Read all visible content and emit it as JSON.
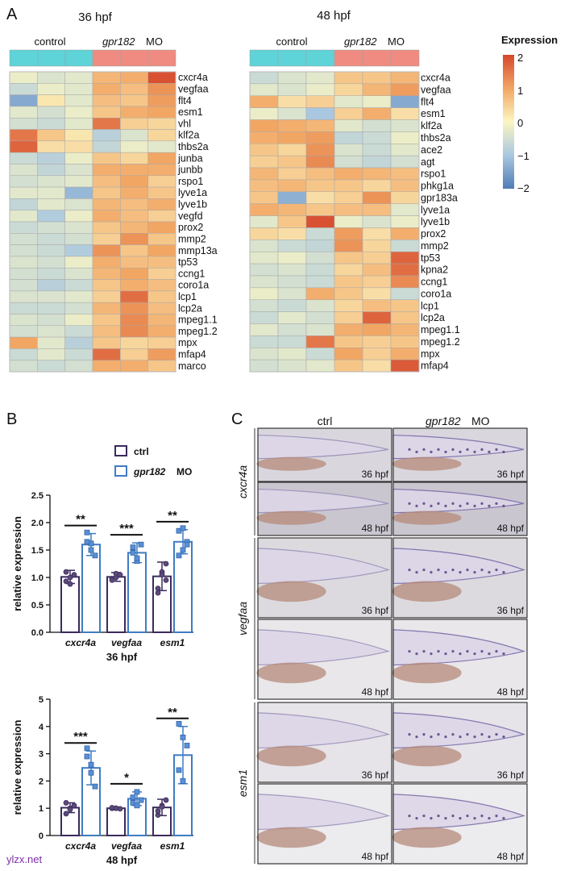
{
  "panel_a": {
    "letter": "A",
    "colorbar": {
      "title": "Expression",
      "ticks": [
        "2",
        "1",
        "0",
        "−1",
        "−2"
      ]
    },
    "heatmaps": [
      {
        "title": "36 hpf",
        "group_labels": [
          "control",
          "gpr182",
          "MO"
        ],
        "genes": [
          "cxcr4a",
          "vegfaa",
          "flt4",
          "esm1",
          "vhl",
          "klf2a",
          "thbs2a",
          "junba",
          "junbb",
          "rspo1",
          "lyve1a",
          "lyve1b",
          "vegfd",
          "prox2",
          "mmp2",
          "mmp13a",
          "tp53",
          "ccng1",
          "coro1a",
          "lcp1",
          "lcp2a",
          "mpeg1.1",
          "mpeg1.2",
          "mpx",
          "mfap4",
          "marco"
        ],
        "values": [
          [
            -0.2,
            -0.4,
            -0.3,
            0.8,
            0.9,
            1.9
          ],
          [
            -0.6,
            -0.2,
            -0.3,
            0.9,
            0.7,
            1.2
          ],
          [
            -1.4,
            0.2,
            -0.3,
            0.7,
            0.6,
            1.1
          ],
          [
            -0.3,
            -0.5,
            -0.2,
            0.6,
            0.9,
            1.0
          ],
          [
            -0.5,
            -0.6,
            -0.3,
            1.5,
            0.5,
            0.4
          ],
          [
            1.5,
            0.6,
            0.2,
            -0.8,
            -0.4,
            0.4
          ],
          [
            1.7,
            0.3,
            0.3,
            -0.7,
            -0.2,
            -0.3
          ],
          [
            -0.6,
            -0.8,
            -0.2,
            0.6,
            0.4,
            1.0
          ],
          [
            -0.4,
            -0.7,
            -0.4,
            0.9,
            0.9,
            0.9
          ],
          [
            -0.5,
            -0.4,
            -0.3,
            0.7,
            1.0,
            0.5
          ],
          [
            -0.3,
            -0.3,
            -1.2,
            0.6,
            0.9,
            0.6
          ],
          [
            -0.7,
            -0.3,
            -0.4,
            0.8,
            0.7,
            0.9
          ],
          [
            -0.3,
            -0.9,
            -0.2,
            0.9,
            0.7,
            0.5
          ],
          [
            -0.6,
            -0.5,
            -0.4,
            0.6,
            0.8,
            1.0
          ],
          [
            -0.5,
            -0.6,
            -0.5,
            0.5,
            1.2,
            0.6
          ],
          [
            -0.5,
            -0.6,
            -0.9,
            1.2,
            0.6,
            1.0
          ],
          [
            -0.4,
            -0.5,
            -0.2,
            0.9,
            0.7,
            0.7
          ],
          [
            -0.5,
            -0.6,
            -0.4,
            0.8,
            1.0,
            0.5
          ],
          [
            -0.5,
            -0.8,
            -0.6,
            0.6,
            0.9,
            0.7
          ],
          [
            -0.4,
            -0.4,
            -0.3,
            0.5,
            1.6,
            0.6
          ],
          [
            -0.6,
            -0.6,
            -0.5,
            0.8,
            1.2,
            0.7
          ],
          [
            -0.4,
            -0.5,
            -0.2,
            0.6,
            1.3,
            0.8
          ],
          [
            -0.5,
            -0.4,
            -0.6,
            0.7,
            1.3,
            0.9
          ],
          [
            1.0,
            -0.3,
            -0.8,
            0.6,
            0.4,
            0.5
          ],
          [
            -0.6,
            -0.3,
            -0.6,
            1.6,
            0.5,
            1.1
          ],
          [
            -0.5,
            -0.6,
            -0.5,
            0.9,
            0.9,
            0.6
          ]
        ]
      },
      {
        "title": "48 hpf",
        "group_labels": [
          "control",
          "gpr182",
          "MO"
        ],
        "genes": [
          "cxcr4a",
          "vegfaa",
          "flt4",
          "esm1",
          "klf2a",
          "thbs2a",
          "ace2",
          "agt",
          "rspo1",
          "phkg1a",
          "gpr183a",
          "lyve1a",
          "lyve1b",
          "prox2",
          "mmp2",
          "tp53",
          "kpna2",
          "ccng1",
          "coro1a",
          "lcp1",
          "lcp2a",
          "mpeg1.1",
          "mpeg1.2",
          "mpx",
          "mfap4"
        ],
        "values": [
          [
            -0.6,
            -0.4,
            -0.3,
            0.6,
            0.6,
            0.8
          ],
          [
            -0.3,
            -0.4,
            -0.2,
            0.4,
            0.8,
            1.1
          ],
          [
            0.9,
            0.3,
            0.5,
            -0.3,
            -0.2,
            -1.4
          ],
          [
            -0.2,
            -0.4,
            -1.0,
            0.5,
            0.9,
            0.3
          ],
          [
            1.0,
            0.9,
            0.8,
            -0.3,
            -0.5,
            -0.4
          ],
          [
            0.9,
            1.0,
            1.1,
            -0.7,
            -0.6,
            -0.2
          ],
          [
            0.6,
            0.4,
            1.2,
            -0.4,
            -0.6,
            -0.3
          ],
          [
            0.5,
            0.6,
            1.3,
            -0.5,
            -0.7,
            -0.5
          ],
          [
            0.8,
            0.5,
            0.7,
            0.9,
            0.8,
            0.7
          ],
          [
            0.7,
            0.8,
            0.6,
            0.6,
            0.4,
            0.7
          ],
          [
            0.6,
            -1.3,
            0.3,
            0.5,
            1.2,
            0.4
          ],
          [
            0.9,
            0.8,
            0.6,
            0.7,
            0.7,
            -0.3
          ],
          [
            -0.3,
            0.6,
            1.9,
            -0.2,
            -0.4,
            -0.2
          ],
          [
            0.4,
            0.3,
            -0.6,
            1.1,
            0.3,
            0.9
          ],
          [
            -0.4,
            -0.6,
            -0.7,
            1.2,
            0.4,
            -0.6
          ],
          [
            -0.3,
            -0.2,
            -0.5,
            0.6,
            0.5,
            1.7
          ],
          [
            -0.5,
            -0.4,
            -0.6,
            0.4,
            0.7,
            1.6
          ],
          [
            -0.4,
            -0.5,
            -0.6,
            0.6,
            0.5,
            1.3
          ],
          [
            -0.2,
            -0.4,
            0.9,
            0.6,
            0.3,
            -0.6
          ],
          [
            -0.5,
            -0.6,
            -0.4,
            0.4,
            0.7,
            0.6
          ],
          [
            -0.6,
            -0.3,
            -0.5,
            0.5,
            1.7,
            0.6
          ],
          [
            -0.3,
            -0.5,
            -0.4,
            0.9,
            1.0,
            0.8
          ],
          [
            -0.6,
            -0.6,
            1.5,
            0.6,
            0.5,
            0.6
          ],
          [
            -0.4,
            -0.3,
            -0.6,
            1.0,
            0.5,
            0.9
          ],
          [
            -0.5,
            -0.4,
            -0.3,
            0.6,
            0.3,
            1.8
          ]
        ]
      }
    ]
  },
  "panel_b": {
    "letter": "B",
    "legend": {
      "ctrl": "ctrl",
      "mo_gene": "gpr182",
      "mo_suffix": "MO"
    },
    "colors": {
      "ctrl": "#3b2a5c",
      "mo": "#3f7cc4",
      "point": "#5a8fd6"
    },
    "chart_data": [
      {
        "type": "bar",
        "title": "36 hpf",
        "ylabel": "relative expression",
        "ylim": [
          0,
          2.5
        ],
        "yticks": [
          "0.0",
          "0.5",
          "1.0",
          "1.5",
          "2.0",
          "2.5"
        ],
        "categories": [
          "cxcr4a",
          "vegfaa",
          "esm1"
        ],
        "series": [
          {
            "name": "ctrl",
            "values": [
              1.01,
              1.01,
              1.02
            ],
            "err": [
              0.12,
              0.08,
              0.26
            ],
            "points": [
              [
                0.93,
                1.0,
                1.05,
                1.1,
                0.88
              ],
              [
                0.98,
                1.0,
                1.05,
                0.95,
                1.07
              ],
              [
                0.8,
                1.1,
                1.25,
                0.72,
                1.05,
                0.95
              ]
            ]
          },
          {
            "name": "gpr182 MO",
            "values": [
              1.6,
              1.45,
              1.65
            ],
            "err": [
              0.2,
              0.18,
              0.22
            ],
            "points": [
              [
                1.82,
                1.62,
                1.4,
                1.65,
                1.5
              ],
              [
                1.55,
                1.3,
                1.6,
                1.45,
                1.35
              ],
              [
                1.85,
                1.5,
                1.65,
                1.4,
                1.9,
                1.6
              ]
            ]
          }
        ],
        "significance": [
          "**",
          "***",
          "**"
        ]
      },
      {
        "type": "bar",
        "title": "48 hpf",
        "ylabel": "relative expression",
        "ylim": [
          0,
          5
        ],
        "yticks": [
          "0",
          "1",
          "2",
          "3",
          "4",
          "5"
        ],
        "categories": [
          "cxcr4a",
          "vegfaa",
          "esm1"
        ],
        "series": [
          {
            "name": "ctrl",
            "values": [
              1.02,
              1.0,
              1.03
            ],
            "err": [
              0.18,
              0.03,
              0.3
            ],
            "points": [
              [
                0.8,
                1.0,
                1.1,
                1.2,
                0.95
              ],
              [
                1.0,
                1.0,
                0.98,
                1.02,
                1.0
              ],
              [
                0.75,
                1.1,
                1.3,
                0.9,
                1.05
              ]
            ]
          },
          {
            "name": "gpr182 MO",
            "values": [
              2.48,
              1.35,
              2.95
            ],
            "err": [
              0.62,
              0.25,
              1.05
            ],
            "points": [
              [
                3.2,
                2.3,
                1.8,
                2.9,
                2.6
              ],
              [
                1.2,
                1.6,
                1.3,
                1.4,
                1.1
              ],
              [
                4.1,
                2.0,
                3.3,
                2.4,
                3.6
              ]
            ]
          }
        ],
        "significance": [
          "***",
          "*",
          "**"
        ]
      }
    ]
  },
  "panel_c": {
    "letter": "C",
    "col_labels": {
      "ctrl": "ctrl",
      "mo_gene": "gpr182",
      "mo_suffix": "MO"
    },
    "rows": [
      {
        "gene": "cxcr4a",
        "stages": [
          "36 hpf",
          "48 hpf"
        ]
      },
      {
        "gene": "vegfaa",
        "stages": [
          "36 hpf",
          "48 hpf"
        ]
      },
      {
        "gene": "esm1",
        "stages": [
          "36 hpf",
          "48 hpf"
        ]
      }
    ],
    "stage_labels": [
      "36 hpf",
      "36 hpf",
      "48 hpf",
      "48 hpf",
      "36 hpf",
      "36 hpf",
      "48 hpf",
      "48 hpf",
      "36 hpf",
      "36 hpf",
      "48 hpf",
      "48 hpf"
    ]
  },
  "watermark": "ylzx.net"
}
